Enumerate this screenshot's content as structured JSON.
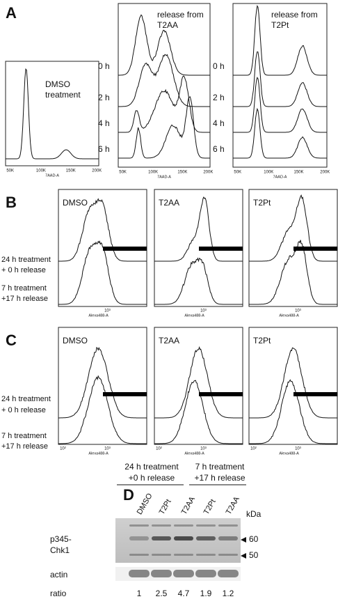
{
  "panel_a": {
    "label": "A",
    "dmso_label": [
      "DMSO",
      "treatment"
    ],
    "t2aa_label": [
      "release from",
      "T2AA"
    ],
    "t2pt_label": [
      "release from",
      "T2Pt"
    ],
    "times": [
      "0 h",
      "2 h",
      "4 h",
      "6 h"
    ],
    "x_ticks": [
      "50K",
      "100K",
      "150K",
      "200K"
    ],
    "x_axis_label": "7AAD-A"
  },
  "panel_b": {
    "label": "B",
    "columns": [
      "DMSO",
      "T2AA",
      "T2Pt"
    ],
    "rows": [
      [
        "24 h treatment",
        "+ 0 h release"
      ],
      [
        "7 h treatment",
        "+17 h release"
      ]
    ],
    "x_ticks": [
      "10³"
    ],
    "x_axis_label": "Alexa488-A"
  },
  "panel_c": {
    "label": "C",
    "columns": [
      "DMSO",
      "T2AA",
      "T2Pt"
    ],
    "rows": [
      [
        "24 h treatment",
        "+ 0 h release"
      ],
      [
        "7 h treatment",
        "+17 h release"
      ]
    ],
    "x_ticks": [
      "10²",
      "10³"
    ],
    "x_axis_label": "Alexa488-A"
  },
  "panel_d": {
    "label": "D",
    "groups": [
      [
        "24 h treatment",
        "+0 h release"
      ],
      [
        "7 h treatment",
        "+17 h release"
      ]
    ],
    "lanes": [
      "DMSO",
      "T2Pt",
      "T2AA",
      "T2Pt",
      "T2AA"
    ],
    "unit": "kDa",
    "markers": [
      "60",
      "50"
    ],
    "protein": [
      "p345-",
      "Chk1"
    ],
    "loading": "actin",
    "ratio_label": "ratio",
    "ratios": [
      1,
      2.5,
      4.7,
      1.9,
      1.2
    ]
  }
}
